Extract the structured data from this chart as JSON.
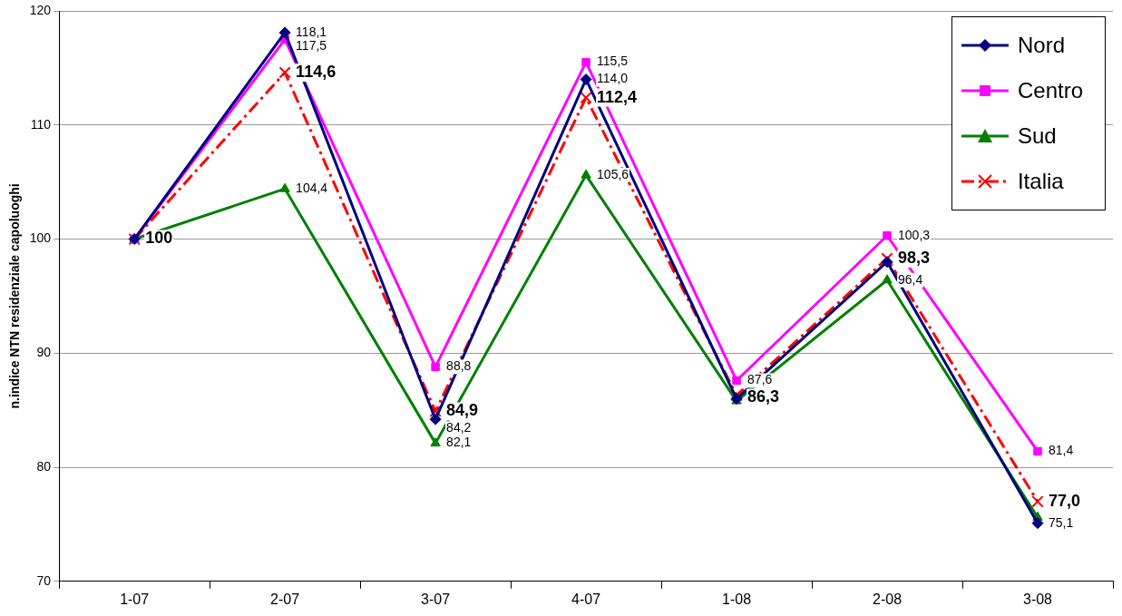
{
  "chart_data": {
    "type": "line",
    "ylabel": "n.indice NTN residenziale capoluoghi",
    "categories": [
      "1-07",
      "2-07",
      "3-07",
      "4-07",
      "1-08",
      "2-08",
      "3-08"
    ],
    "ylim": [
      70,
      120
    ],
    "yticks": [
      70,
      80,
      90,
      100,
      110,
      120
    ],
    "grid": "y",
    "legend": "top right",
    "series": [
      {
        "name": "Nord",
        "color": "#000080",
        "marker": "diamond",
        "line_style": "solid",
        "values": [
          100,
          118.1,
          84.2,
          114.0,
          86.0,
          98.0,
          75.1
        ],
        "value_labels": [
          null,
          "118,1",
          "84,2",
          "114,0",
          null,
          null,
          "75,1"
        ]
      },
      {
        "name": "Centro",
        "color": "#ff00ff",
        "marker": "square",
        "line_style": "solid",
        "values": [
          100,
          117.5,
          88.8,
          115.5,
          87.6,
          100.3,
          81.4
        ],
        "value_labels": [
          null,
          "117,5",
          "88,8",
          "115,5",
          "87,6",
          "100,3",
          "81,4"
        ]
      },
      {
        "name": "Sud",
        "color": "#008000",
        "marker": "triangle",
        "line_style": "solid",
        "values": [
          100,
          104.4,
          82.1,
          105.6,
          85.8,
          96.4,
          75.6
        ],
        "value_labels": [
          null,
          "104,4",
          "82,1",
          "105,6",
          null,
          "96,4",
          null
        ]
      },
      {
        "name": "Italia",
        "color": "#ff0000",
        "marker": "cross",
        "line_style": "dashed",
        "values": [
          100,
          114.6,
          84.9,
          112.4,
          86.3,
          98.3,
          77.0
        ],
        "value_labels": [
          "100",
          "114,6",
          "84,9",
          "112,4",
          "86,3",
          "98,3",
          "77,0"
        ]
      }
    ]
  }
}
